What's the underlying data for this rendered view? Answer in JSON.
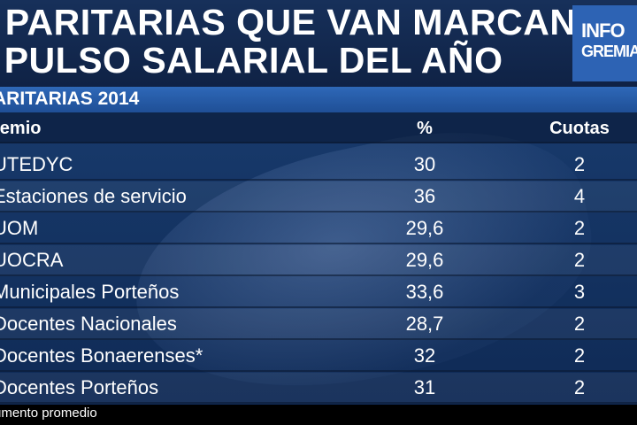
{
  "header": {
    "title_line1": "S PARITARIAS QUE VAN MARCANDO",
    "title_line2": "L PULSO SALARIAL DEL AÑO",
    "logo_top": "INFO",
    "logo_bottom": "GREMIAL"
  },
  "subtitle": "ARITARIAS 2014",
  "table": {
    "columns": [
      "remio",
      "%",
      "Cuotas"
    ],
    "rows": [
      {
        "name": "UTEDYC",
        "pct": "30",
        "cuotas": "2"
      },
      {
        "name": "Estaciones de servicio",
        "pct": "36",
        "cuotas": "4"
      },
      {
        "name": "UOM",
        "pct": "29,6",
        "cuotas": "2"
      },
      {
        "name": "UOCRA",
        "pct": "29,6",
        "cuotas": "2"
      },
      {
        "name": "Municipales Porteños",
        "pct": "33,6",
        "cuotas": "3"
      },
      {
        "name": "Docentes Nacionales",
        "pct": "28,7",
        "cuotas": "2"
      },
      {
        "name": "Docentes Bonaerenses*",
        "pct": "32",
        "cuotas": "2"
      },
      {
        "name": "Docentes Porteños",
        "pct": "31",
        "cuotas": "2"
      }
    ]
  },
  "footnote": "umento promedio",
  "colors": {
    "header_bg": "#17305a",
    "accent_blue": "#2e68b8",
    "logo_bg": "#2d63b4",
    "table_bg": "#183a6c"
  }
}
